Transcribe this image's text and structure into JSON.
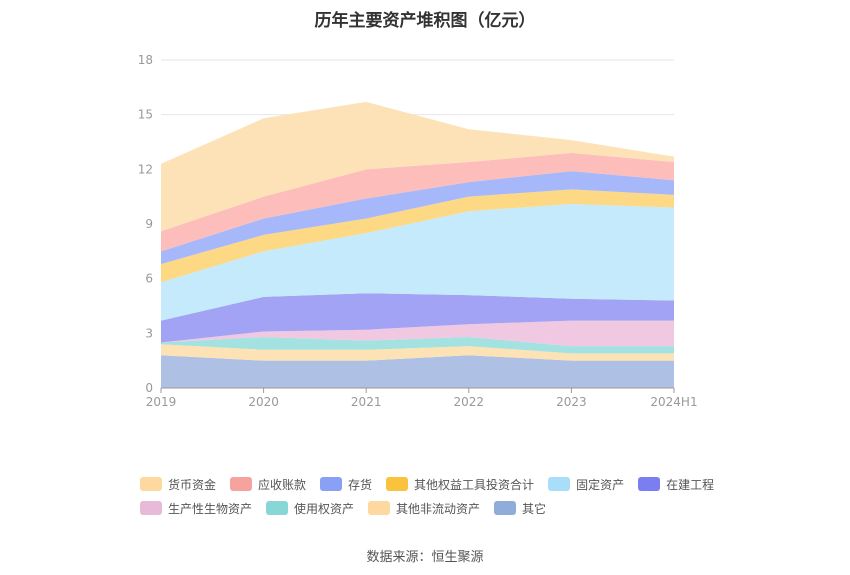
{
  "title": "历年主要资产堆积图（亿元）",
  "source": "数据来源：恒生聚源",
  "chart_data": {
    "type": "area",
    "stacked": true,
    "categories": [
      "2019",
      "2020",
      "2021",
      "2022",
      "2023",
      "2024H1"
    ],
    "ylim": [
      0,
      18
    ],
    "yticks": [
      0,
      3,
      6,
      9,
      12,
      15,
      18
    ],
    "grid": true,
    "legend_position": "bottom",
    "series": [
      {
        "name": "其它",
        "color": "#aec1e4",
        "values": [
          1.8,
          1.5,
          1.5,
          1.8,
          1.5,
          1.5
        ]
      },
      {
        "name": "其他非流动资产",
        "color": "#fde2b5",
        "values": [
          0.6,
          0.6,
          0.6,
          0.5,
          0.4,
          0.4
        ]
      },
      {
        "name": "使用权资产",
        "color": "#a3e2e0",
        "values": [
          0.1,
          0.7,
          0.5,
          0.5,
          0.4,
          0.4
        ]
      },
      {
        "name": "生产性生物资产",
        "color": "#f0c8e1",
        "values": [
          0.0,
          0.3,
          0.6,
          0.7,
          1.4,
          1.4
        ]
      },
      {
        "name": "在建工程",
        "color": "#a2a3f5",
        "values": [
          1.2,
          1.9,
          2.0,
          1.6,
          1.2,
          1.1
        ]
      },
      {
        "name": "固定资产",
        "color": "#c5eafb",
        "values": [
          2.1,
          2.5,
          3.3,
          4.6,
          5.2,
          5.1
        ]
      },
      {
        "name": "其他权益工具投资合计",
        "color": "#fdd885",
        "values": [
          1.0,
          0.9,
          0.8,
          0.8,
          0.8,
          0.7
        ]
      },
      {
        "name": "存货",
        "color": "#a6b8fa",
        "values": [
          0.7,
          0.9,
          1.1,
          0.8,
          1.0,
          0.8
        ]
      },
      {
        "name": "应收账款",
        "color": "#fdbdbb",
        "values": [
          1.1,
          1.2,
          1.6,
          1.1,
          1.0,
          1.0
        ]
      },
      {
        "name": "货币资金",
        "color": "#fee2b7",
        "values": [
          3.7,
          4.3,
          3.7,
          1.8,
          0.7,
          0.3
        ]
      }
    ]
  },
  "legend": {
    "row1": [
      {
        "name": "货币资金",
        "color": "#fdd9a0"
      },
      {
        "name": "应收账款",
        "color": "#f6a3a0"
      },
      {
        "name": "存货",
        "color": "#8aa0f5"
      },
      {
        "name": "其他权益工具投资合计",
        "color": "#fbc33d"
      },
      {
        "name": "固定资产",
        "color": "#a9defa"
      },
      {
        "name": "在建工程",
        "color": "#7b7ef0"
      }
    ],
    "row2": [
      {
        "name": "生产性生物资产",
        "color": "#e9b9d8"
      },
      {
        "name": "使用权资产",
        "color": "#86d7d5"
      },
      {
        "name": "其他非流动资产",
        "color": "#fdd9a0"
      },
      {
        "name": "其它",
        "color": "#90acdb"
      }
    ]
  }
}
